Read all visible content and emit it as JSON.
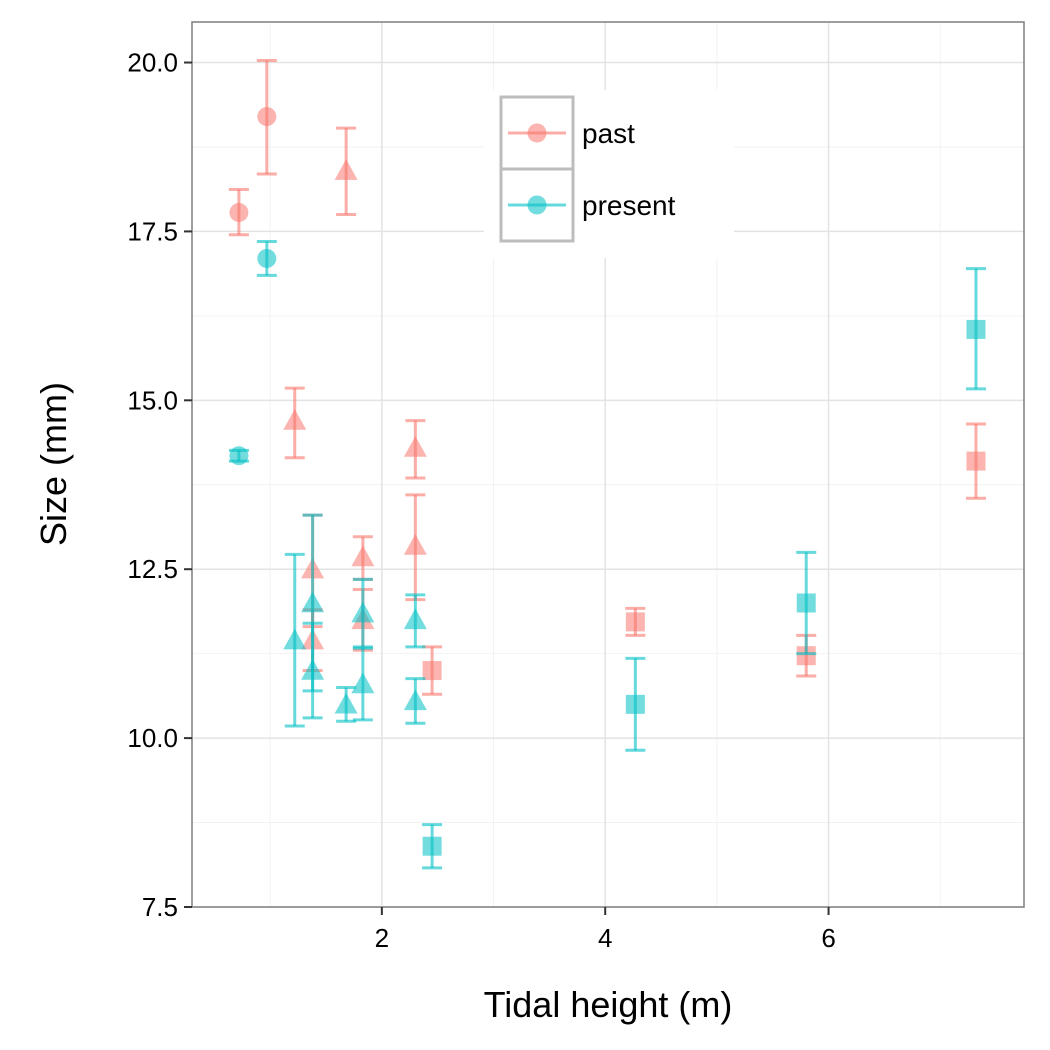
{
  "chart_data": {
    "type": "scatter",
    "title": "",
    "xlabel": "Tidal height (m)",
    "ylabel": "Size (mm)",
    "xlim": [
      0.3,
      7.75
    ],
    "ylim": [
      7.5,
      20.6
    ],
    "x_ticks": [
      {
        "value": 2,
        "label": "2"
      },
      {
        "value": 4,
        "label": "4"
      },
      {
        "value": 6,
        "label": "6"
      }
    ],
    "y_ticks": [
      {
        "value": 7.5,
        "label": "7.5"
      },
      {
        "value": 10.0,
        "label": "10.0"
      },
      {
        "value": 12.5,
        "label": "12.5"
      },
      {
        "value": 15.0,
        "label": "15.0"
      },
      {
        "value": 17.5,
        "label": "17.5"
      },
      {
        "value": 20.0,
        "label": "20.0"
      }
    ],
    "grid": true,
    "error_bars": true,
    "legend_position": "top-center",
    "series": [
      {
        "name": "past",
        "color": "#F8766D",
        "points": [
          {
            "x": 0.72,
            "y": 17.78,
            "lo": 17.45,
            "hi": 18.12,
            "shape": "circle"
          },
          {
            "x": 0.97,
            "y": 19.2,
            "lo": 18.35,
            "hi": 20.03,
            "shape": "circle"
          },
          {
            "x": 1.22,
            "y": 14.7,
            "lo": 14.15,
            "hi": 15.18,
            "shape": "triangle"
          },
          {
            "x": 1.38,
            "y": 12.5,
            "lo": 11.65,
            "hi": 13.3,
            "shape": "triangle"
          },
          {
            "x": 1.38,
            "y": 11.45,
            "lo": 11.0,
            "hi": 11.9,
            "shape": "triangle"
          },
          {
            "x": 1.68,
            "y": 18.4,
            "lo": 17.75,
            "hi": 19.03,
            "shape": "triangle"
          },
          {
            "x": 1.83,
            "y": 12.68,
            "lo": 12.35,
            "hi": 12.98,
            "shape": "triangle"
          },
          {
            "x": 1.83,
            "y": 11.75,
            "lo": 11.3,
            "hi": 12.2,
            "shape": "triangle"
          },
          {
            "x": 2.3,
            "y": 14.3,
            "lo": 13.85,
            "hi": 14.7,
            "shape": "triangle"
          },
          {
            "x": 2.3,
            "y": 12.85,
            "lo": 12.05,
            "hi": 13.6,
            "shape": "triangle"
          },
          {
            "x": 2.45,
            "y": 11.0,
            "lo": 10.65,
            "hi": 11.35,
            "shape": "square"
          },
          {
            "x": 4.27,
            "y": 11.72,
            "lo": 11.52,
            "hi": 11.92,
            "shape": "square"
          },
          {
            "x": 5.8,
            "y": 11.22,
            "lo": 10.92,
            "hi": 11.52,
            "shape": "square"
          },
          {
            "x": 7.32,
            "y": 14.1,
            "lo": 13.55,
            "hi": 14.65,
            "shape": "square"
          }
        ]
      },
      {
        "name": "present",
        "color": "#00BFC4",
        "points": [
          {
            "x": 0.72,
            "y": 14.18,
            "lo": 14.1,
            "hi": 14.26,
            "shape": "circle"
          },
          {
            "x": 0.97,
            "y": 17.1,
            "lo": 16.85,
            "hi": 17.35,
            "shape": "circle"
          },
          {
            "x": 1.22,
            "y": 11.45,
            "lo": 10.18,
            "hi": 12.72,
            "shape": "triangle"
          },
          {
            "x": 1.38,
            "y": 12.0,
            "lo": 10.7,
            "hi": 13.3,
            "shape": "triangle"
          },
          {
            "x": 1.38,
            "y": 11.0,
            "lo": 10.3,
            "hi": 11.7,
            "shape": "triangle"
          },
          {
            "x": 1.68,
            "y": 10.5,
            "lo": 10.25,
            "hi": 10.75,
            "shape": "triangle"
          },
          {
            "x": 1.83,
            "y": 11.85,
            "lo": 11.35,
            "hi": 12.35,
            "shape": "triangle"
          },
          {
            "x": 1.83,
            "y": 10.8,
            "lo": 10.27,
            "hi": 11.33,
            "shape": "triangle"
          },
          {
            "x": 2.3,
            "y": 11.75,
            "lo": 11.35,
            "hi": 12.12,
            "shape": "triangle"
          },
          {
            "x": 2.3,
            "y": 10.55,
            "lo": 10.22,
            "hi": 10.88,
            "shape": "triangle"
          },
          {
            "x": 2.45,
            "y": 8.4,
            "lo": 8.08,
            "hi": 8.72,
            "shape": "square"
          },
          {
            "x": 4.27,
            "y": 10.5,
            "lo": 9.82,
            "hi": 11.18,
            "shape": "square"
          },
          {
            "x": 5.8,
            "y": 12.0,
            "lo": 11.25,
            "hi": 12.75,
            "shape": "square"
          },
          {
            "x": 7.32,
            "y": 16.05,
            "lo": 15.17,
            "hi": 16.95,
            "shape": "square"
          }
        ]
      }
    ]
  }
}
